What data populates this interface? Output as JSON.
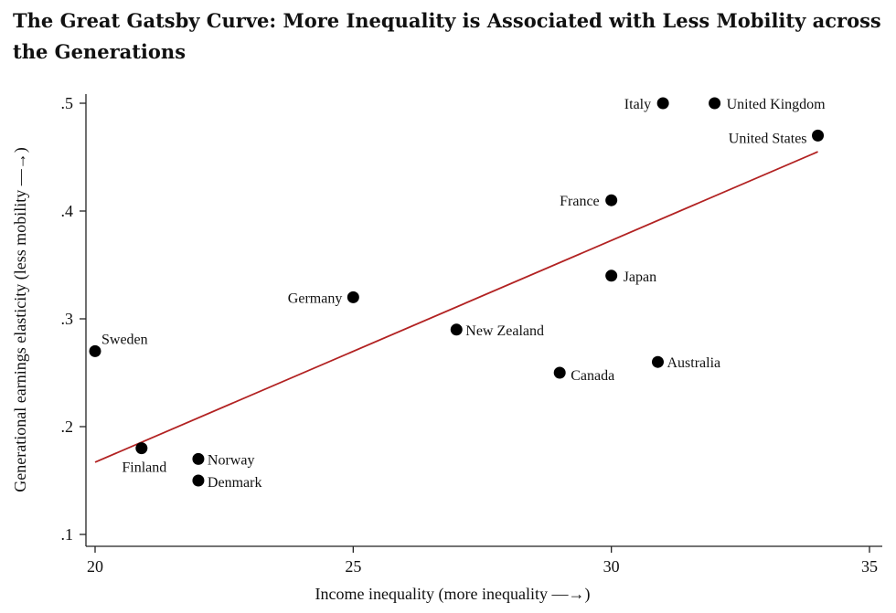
{
  "chart_data": {
    "type": "scatter",
    "title": "The Great Gatsby Curve: More Inequality is Associated with Less Mobility across the Generations",
    "xlabel": "Income inequality (more inequality —→)",
    "ylabel": "Generational earnings elasticity (less mobility —→)",
    "xlim": [
      20,
      35
    ],
    "ylim": [
      0.1,
      0.5
    ],
    "x_ticks": [
      20,
      25,
      30,
      35
    ],
    "x_tick_labels": [
      "20",
      "25",
      "30",
      "35"
    ],
    "y_ticks": [
      0.1,
      0.2,
      0.3,
      0.4,
      0.5
    ],
    "y_tick_labels": [
      ".1",
      ".2",
      ".3",
      ".4",
      ".5"
    ],
    "grid": false,
    "points": [
      {
        "label": "Italy",
        "x": 31.0,
        "y": 0.5
      },
      {
        "label": "United Kingdom",
        "x": 32.0,
        "y": 0.5
      },
      {
        "label": "United States",
        "x": 34.0,
        "y": 0.47
      },
      {
        "label": "France",
        "x": 30.0,
        "y": 0.41
      },
      {
        "label": "Japan",
        "x": 30.0,
        "y": 0.34
      },
      {
        "label": "Germany",
        "x": 25.0,
        "y": 0.32
      },
      {
        "label": "New Zealand",
        "x": 27.0,
        "y": 0.29
      },
      {
        "label": "Sweden",
        "x": 20.0,
        "y": 0.27
      },
      {
        "label": "Canada",
        "x": 29.0,
        "y": 0.25
      },
      {
        "label": "Australia",
        "x": 30.9,
        "y": 0.26
      },
      {
        "label": "Finland",
        "x": 20.9,
        "y": 0.18
      },
      {
        "label": "Norway",
        "x": 22.0,
        "y": 0.17
      },
      {
        "label": "Denmark",
        "x": 22.0,
        "y": 0.15
      }
    ],
    "trend_line": {
      "x": [
        20,
        34
      ],
      "y": [
        0.167,
        0.455
      ],
      "color": "#b22222"
    },
    "marker_color": "#000000"
  }
}
